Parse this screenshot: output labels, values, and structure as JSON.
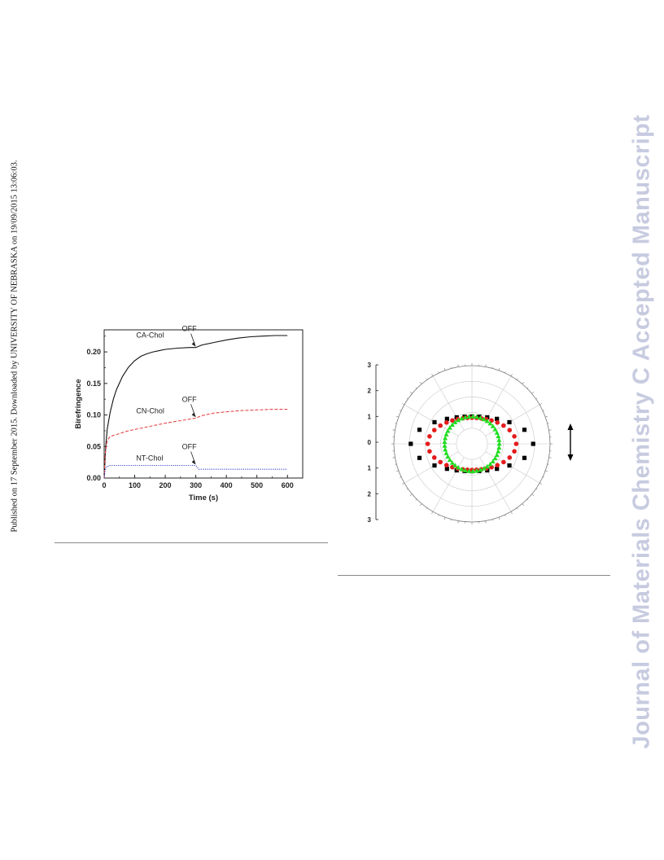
{
  "side_note": "Published on 17 September 2015. Downloaded by UNIVERSITY OF NEBRASKA on 19/09/2015 13:06:03.",
  "watermark": "Journal of Materials Chemistry C Accepted Manuscript",
  "chart_data": [
    {
      "type": "line",
      "xlabel": "Time (s)",
      "ylabel": "Birefringence",
      "xlim": [
        0,
        650
      ],
      "ylim": [
        0,
        0.235
      ],
      "xticks": [
        "0",
        "100",
        "200",
        "300",
        "400",
        "500",
        "600"
      ],
      "yticks": [
        "0.00",
        "0.05",
        "0.10",
        "0.15",
        "0.20"
      ],
      "series": [
        {
          "name": "CA-Chol",
          "color": "#111111",
          "dash": "solid",
          "x": [
            0,
            5,
            10,
            20,
            30,
            40,
            60,
            80,
            100,
            120,
            140,
            160,
            180,
            200,
            240,
            280,
            300,
            320,
            360,
            400,
            440,
            480,
            520,
            560,
            600
          ],
          "y": [
            0,
            0.05,
            0.078,
            0.105,
            0.125,
            0.14,
            0.161,
            0.176,
            0.186,
            0.193,
            0.197,
            0.2,
            0.202,
            0.204,
            0.206,
            0.207,
            0.207,
            0.211,
            0.215,
            0.219,
            0.222,
            0.224,
            0.225,
            0.226,
            0.226
          ]
        },
        {
          "name": "CN-Chol",
          "color": "#e8474a",
          "dash": "dashed",
          "x": [
            0,
            3,
            8,
            15,
            20,
            40,
            60,
            80,
            100,
            150,
            200,
            250,
            300,
            320,
            360,
            400,
            450,
            500,
            550,
            600
          ],
          "y": [
            0,
            0.035,
            0.055,
            0.063,
            0.066,
            0.069,
            0.072,
            0.075,
            0.077,
            0.082,
            0.087,
            0.091,
            0.095,
            0.099,
            0.103,
            0.105,
            0.107,
            0.108,
            0.109,
            0.109
          ]
        },
        {
          "name": "NT-Chol",
          "color": "#3a46c8",
          "dash": "dotted",
          "x": [
            0,
            3,
            8,
            20,
            50,
            100,
            200,
            300,
            310,
            400,
            500,
            600
          ],
          "y": [
            0,
            0.012,
            0.018,
            0.02,
            0.02,
            0.02,
            0.02,
            0.02,
            0.014,
            0.014,
            0.014,
            0.014
          ]
        }
      ],
      "annotations": [
        {
          "text": "OFF",
          "x": 300,
          "y": 0.207
        },
        {
          "text": "OFF",
          "x": 300,
          "y": 0.095
        },
        {
          "text": "OFF",
          "x": 300,
          "y": 0.02
        }
      ]
    },
    {
      "type": "scatter",
      "subtype": "polar",
      "ytick_labels": [
        "3",
        "2",
        "1",
        "0",
        "1",
        "2",
        "3"
      ],
      "rlim": [
        0,
        3
      ],
      "grid": true,
      "series": [
        {
          "marker": "square",
          "color": "#000000",
          "a": 2.35,
          "b": 1.05
        },
        {
          "marker": "circle",
          "color": "#e41a1c",
          "a": 1.7,
          "b": 1.0
        },
        {
          "marker": "triangle",
          "color": "#22dd22",
          "a": 1.05,
          "b": 1.05
        }
      ],
      "arrow": "double-vertical"
    }
  ]
}
